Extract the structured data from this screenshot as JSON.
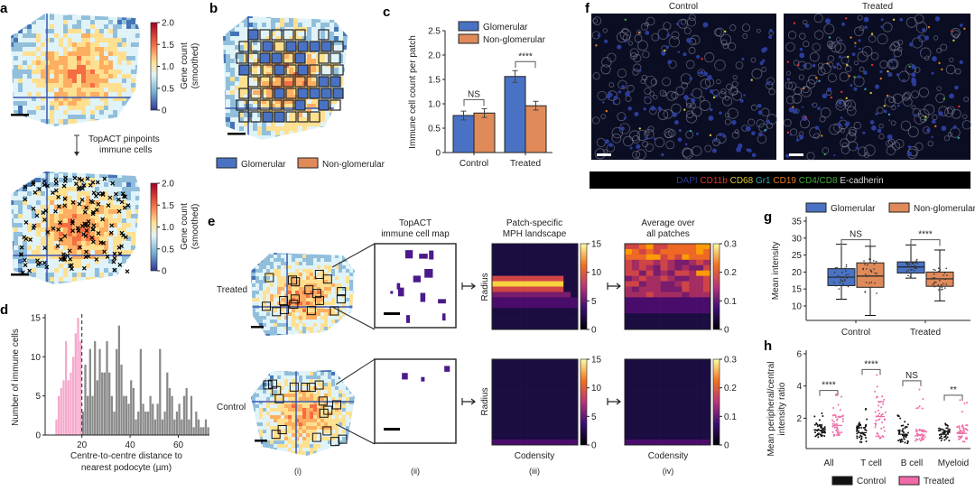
{
  "panels": {
    "a": {
      "label": "a",
      "colorbar_label_1": "Gene count",
      "colorbar_label_2": "(smoothed)",
      "colorbar_ticks": [
        "2.0",
        "1.5",
        "1.0",
        "0.5",
        "0"
      ],
      "arrow_text_1": "TopACT pinpoints",
      "arrow_text_2": "immune cells"
    },
    "b": {
      "label": "b",
      "legend": [
        "Glomerular",
        "Non-glomerular"
      ]
    },
    "c": {
      "label": "c"
    },
    "d": {
      "label": "d"
    },
    "e": {
      "label": "e",
      "col_titles": [
        [
          "TopACT",
          "immune cell map"
        ],
        [
          "Patch-specific",
          "MPH landscape"
        ],
        [
          "Average over",
          "all patches"
        ]
      ],
      "row_labels": [
        "Treated",
        "Control"
      ],
      "y_label": "Radius",
      "x_label": "Codensity",
      "mph_colorbar_ticks": [
        "15",
        "10",
        "5",
        "0"
      ],
      "avg_colorbar_ticks": [
        "0.3",
        "0.2",
        "0.1",
        "0"
      ],
      "avg_colorbar_range": [
        0,
        0.33
      ],
      "mph_colorbar_range": [
        0,
        15.5
      ],
      "column_numerals": [
        "(i)",
        "(ii)",
        "(iii)",
        "(iv)"
      ],
      "colormap": "inferno"
    },
    "f": {
      "label": "f",
      "titles": [
        "Control",
        "Treated"
      ],
      "channels": [
        {
          "name": "DAPI",
          "color": "#2b3d9a"
        },
        {
          "name": "CD11b",
          "color": "#e0302a"
        },
        {
          "name": "CD68",
          "color": "#d9c73a"
        },
        {
          "name": "Gr1",
          "color": "#2aa6b5"
        },
        {
          "name": "CD19",
          "color": "#e07a1f"
        },
        {
          "name": "CD4/CD8",
          "color": "#3fa83a"
        },
        {
          "name": "E-cadherin",
          "color": "#dddddd"
        }
      ]
    },
    "g": {
      "label": "g"
    },
    "h": {
      "label": "h"
    }
  },
  "colors": {
    "glomerular": "#4a72c4",
    "non_glomerular": "#e08a5a",
    "control": "#111111",
    "treated": "#f06aa8",
    "near": "#f7a8cc",
    "far": "#8a8a8a"
  },
  "chart_data": [
    {
      "panel": "c",
      "type": "bar",
      "categories": [
        "Control",
        "Treated"
      ],
      "series": [
        {
          "name": "Glomerular",
          "values": [
            0.76,
            1.56
          ],
          "errors": [
            0.09,
            0.12
          ]
        },
        {
          "name": "Non-glomerular",
          "values": [
            0.81,
            0.96
          ],
          "errors": [
            0.09,
            0.09
          ]
        }
      ],
      "ylabel": "Immune cell count per patch",
      "ylim": [
        0,
        2.5
      ],
      "yticks": [
        "0",
        "0.5",
        "1.0",
        "1.5",
        "2.0",
        "2.5"
      ],
      "significance": [
        "NS",
        "****"
      ],
      "legend": "top-right"
    },
    {
      "panel": "d",
      "type": "bar",
      "xlabel_1": "Centre-to-centre distance to",
      "xlabel_2": "nearest podocyte (µm)",
      "ylabel": "Number of immune cells",
      "ylim": [
        0,
        15
      ],
      "xlim": [
        8,
        71
      ],
      "xticks": [
        "20",
        "40",
        "60"
      ],
      "yticks": [
        "0",
        "5",
        "10",
        "15"
      ],
      "threshold": 20,
      "bin_start": 9,
      "values": [
        2,
        5,
        6,
        7,
        12,
        7,
        8,
        10,
        13,
        15,
        12,
        3,
        9,
        5,
        11,
        5,
        12,
        7,
        11,
        8,
        8,
        12,
        8,
        5,
        3,
        11,
        14,
        9,
        5,
        5,
        4,
        7,
        6,
        2,
        3,
        11,
        4,
        3,
        3,
        5,
        4,
        2,
        4,
        11,
        2,
        3,
        8,
        6,
        5,
        2,
        3,
        4,
        2,
        5,
        6,
        2,
        5,
        1,
        3,
        2,
        1,
        1,
        2,
        1
      ]
    },
    {
      "panel": "g",
      "type": "box",
      "categories": [
        "Control",
        "Treated"
      ],
      "ylabel": "Mean intensity",
      "ylim": [
        5,
        35
      ],
      "yticks": [
        "10",
        "15",
        "20",
        "25",
        "30",
        "35"
      ],
      "series": [
        {
          "name": "Glomerular",
          "boxes": [
            {
              "min": 12,
              "q1": 16,
              "median": 18.5,
              "q3": 21,
              "max": 28.2
            },
            {
              "min": 18.2,
              "q1": 19.7,
              "median": 21.5,
              "q3": 23,
              "max": 28
            }
          ]
        },
        {
          "name": "Non-glomerular",
          "boxes": [
            {
              "min": 7.2,
              "q1": 15.5,
              "median": 18.8,
              "q3": 22.7,
              "max": 27.6
            },
            {
              "min": 11.5,
              "q1": 15.8,
              "median": 18,
              "q3": 20,
              "max": 26.5
            }
          ]
        }
      ],
      "significance": [
        "NS",
        "****"
      ],
      "legend": "top"
    },
    {
      "panel": "h",
      "type": "scatter",
      "categories": [
        "All",
        "T cell",
        "B cell",
        "Myeloid"
      ],
      "ylabel_1": "Mean peripheral/central",
      "ylabel_2": "intensity ratio",
      "ylim": [
        0,
        6
      ],
      "yticks": [
        "2",
        "4",
        "6"
      ],
      "series": [
        {
          "name": "Control",
          "medians": [
            1.25,
            1.1,
            1.0,
            1.0
          ],
          "ranges": [
            [
              0.7,
              2.3
            ],
            [
              0.3,
              2.7
            ],
            [
              0.3,
              2.2
            ],
            [
              0.5,
              1.7
            ]
          ]
        },
        {
          "name": "Treated",
          "medians": [
            1.55,
            2.1,
            0.95,
            1.05
          ],
          "ranges": [
            [
              0.7,
              3.5
            ],
            [
              0.4,
              4.8
            ],
            [
              0.5,
              4.1
            ],
            [
              0.4,
              3.2
            ]
          ]
        }
      ],
      "significance": [
        "****",
        "****",
        "NS",
        "**"
      ],
      "legend": "bottom"
    }
  ]
}
